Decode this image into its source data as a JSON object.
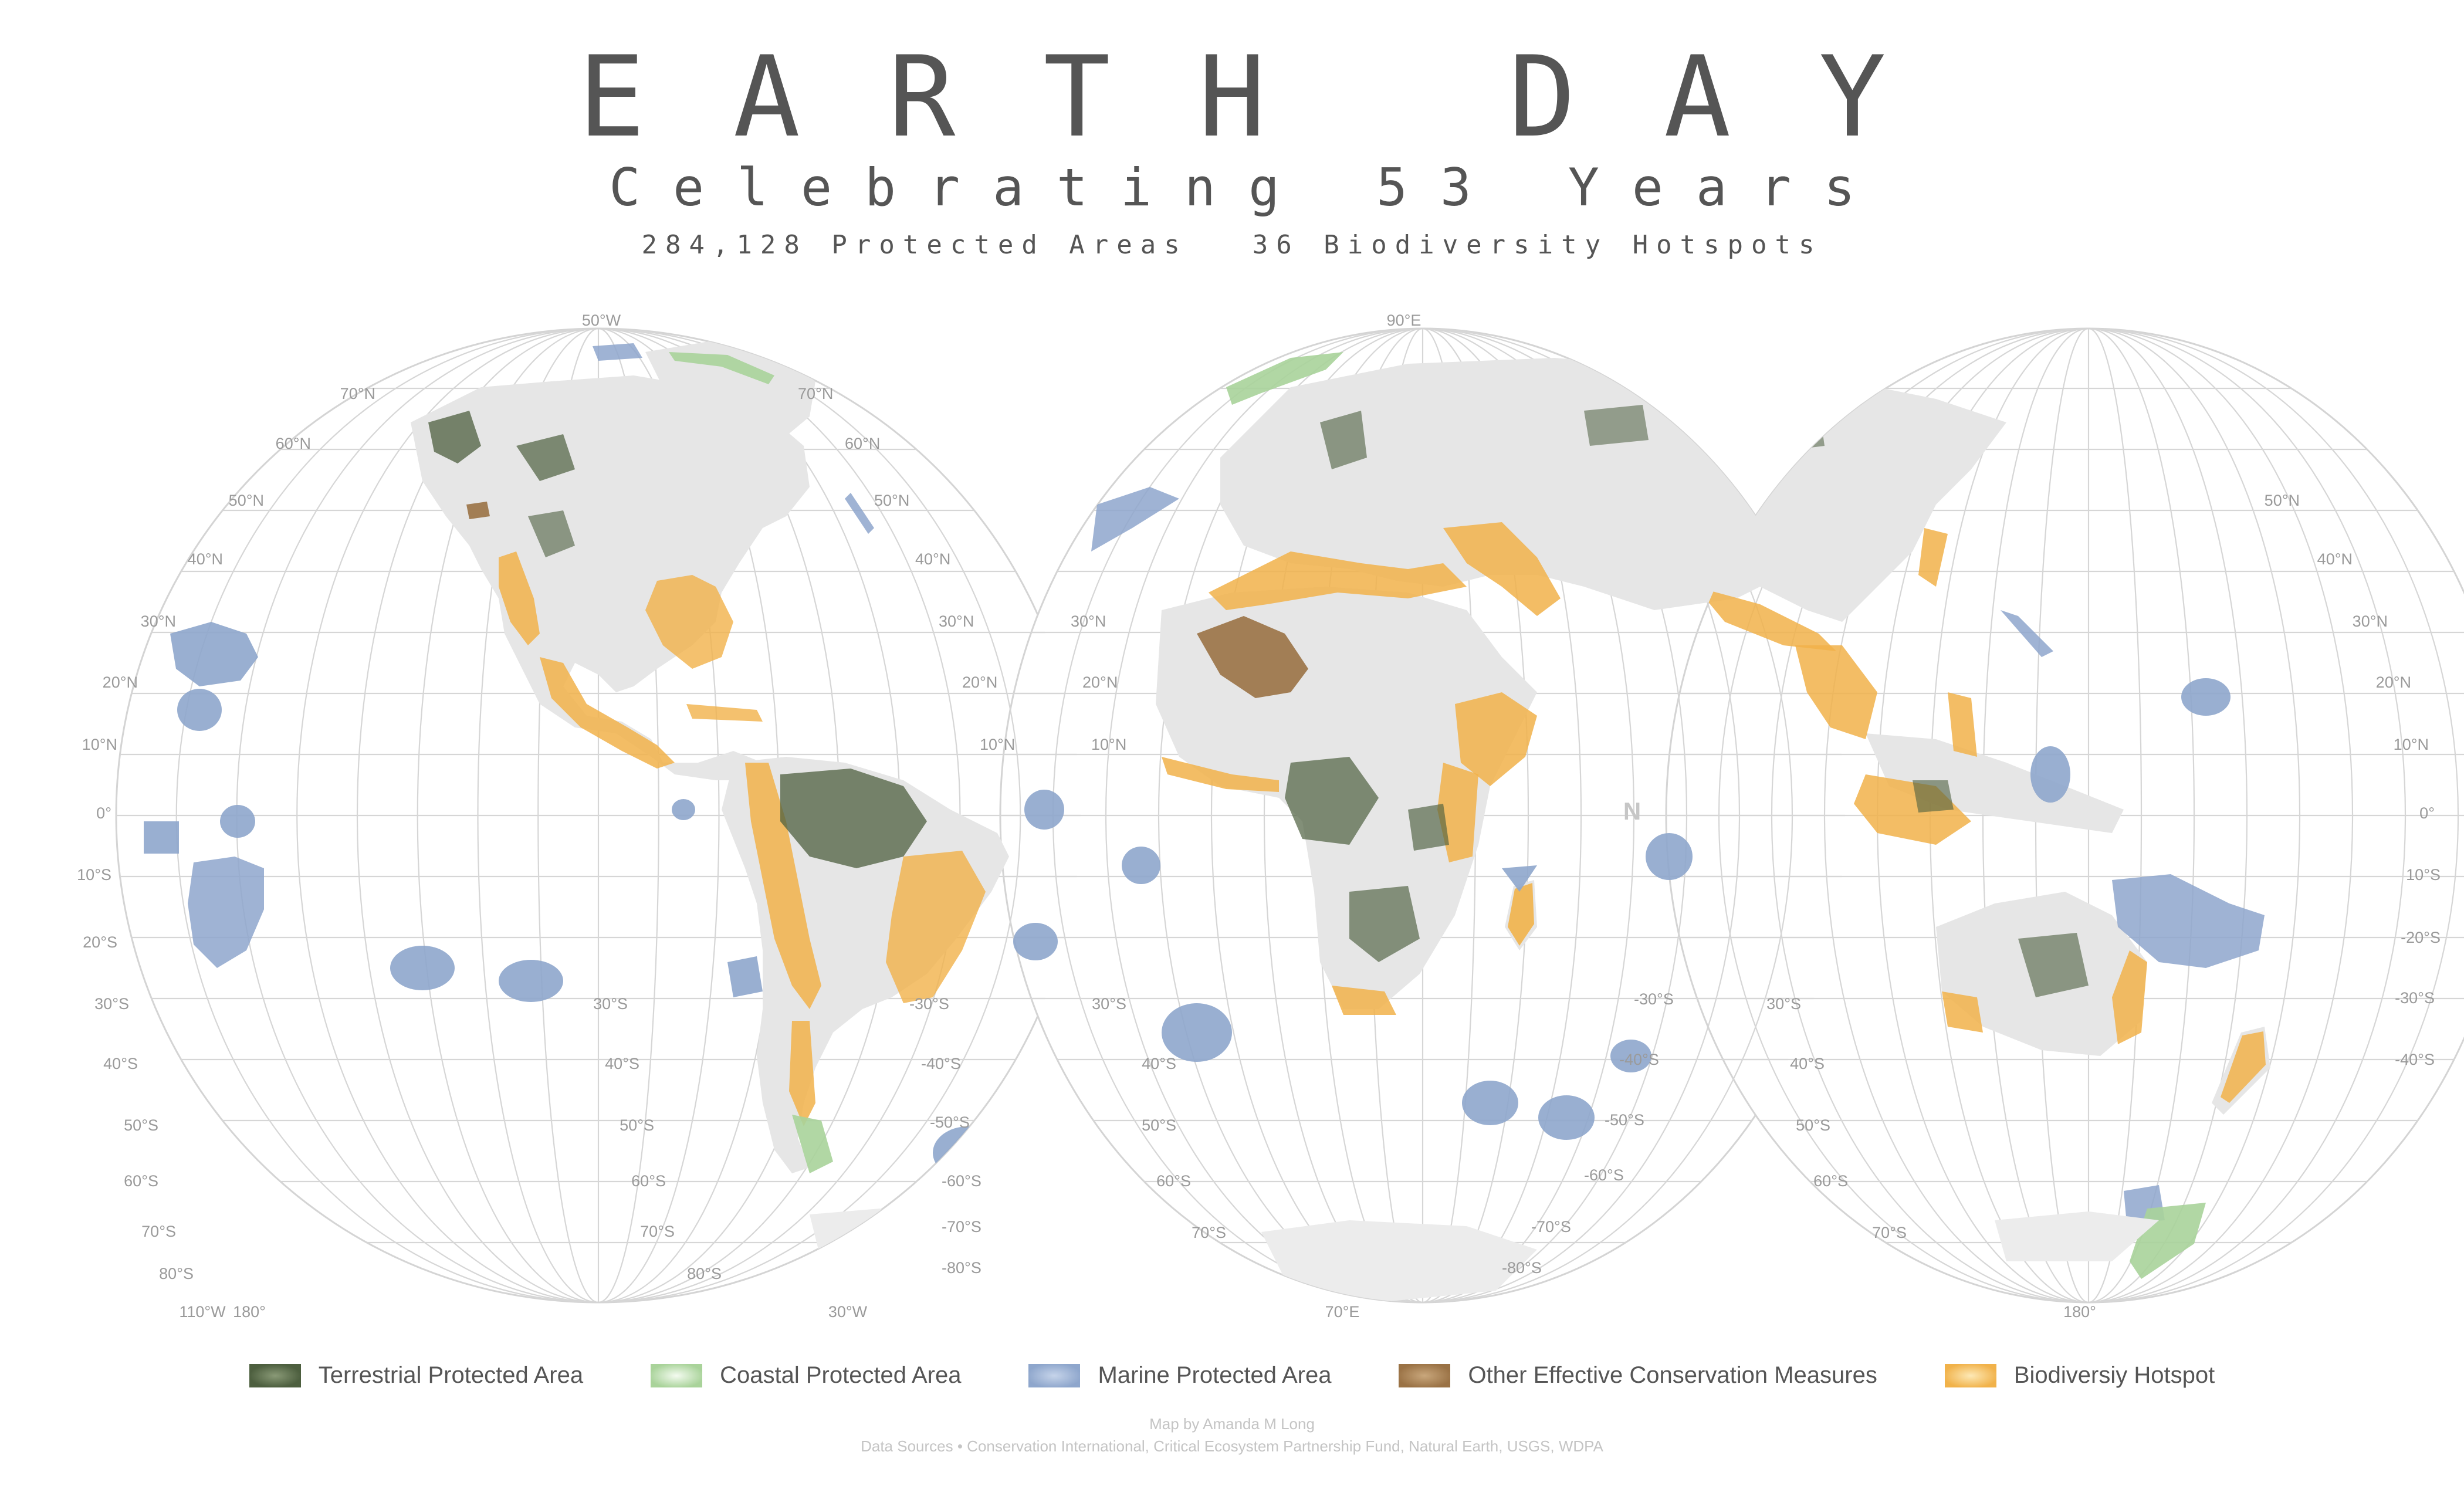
{
  "title": "EARTH DAY",
  "subtitle": "Celebrating 53 Years",
  "stats": {
    "protected_areas": "284,128 Protected Areas",
    "hotspots": "36 Biodiversity Hotspots"
  },
  "colors": {
    "terrestrial": "#4d5f3f",
    "coastal": "#a9d39a",
    "marine": "#8ea6cc",
    "oecm": "#9a7245",
    "hotspot": "#f1b24a",
    "land": "#e6e6e6",
    "graticule": "#d4d4d4"
  },
  "map": {
    "compass_label": "N",
    "lobe_labels": [
      {
        "center": "50°W",
        "bottom": "30°W"
      },
      {
        "center": "90°E",
        "bottom": "70°E"
      },
      {
        "bottom": "180°"
      }
    ],
    "corner_labels": [
      "110°W",
      "180°"
    ],
    "left_latitudes": [
      "70°N",
      "60°N",
      "50°N",
      "40°N",
      "30°N",
      "20°N",
      "10°N",
      "0°",
      "10°S",
      "20°S",
      "30°S",
      "40°S",
      "50°S",
      "60°S",
      "70°S",
      "80°S"
    ],
    "right_latitudes": [
      "70°N",
      "60°N",
      "50°N",
      "40°N",
      "30°N",
      "20°N",
      "10°N",
      "0°",
      "10°S",
      "20°S",
      "30°S",
      "40°S",
      "50°S",
      "60°S",
      "70°S",
      "80°S"
    ],
    "seam1_left": [
      "30°S",
      "40°S",
      "50°S",
      "60°S",
      "70°S",
      "80°S"
    ],
    "seam1_right": [
      "30°N",
      "20°N",
      "10°N"
    ],
    "mid_right_labels": [
      "-30°S",
      "-40°S",
      "-50°S",
      "-60°S",
      "-70°S",
      "-80°S"
    ],
    "seam2_left": [
      "30°S",
      "40°S",
      "50°S",
      "60°S",
      "70°S"
    ],
    "seam2_right": [
      "-30°S",
      "-40°S",
      "-50°S",
      "-60°S",
      "-70°S",
      "-80°S"
    ]
  },
  "legend": [
    {
      "label": "Terrestrial Protected Area",
      "color": "#4d5f3f"
    },
    {
      "label": "Coastal Protected Area",
      "color": "#a9d39a"
    },
    {
      "label": "Marine Protected Area",
      "color": "#8ea6cc"
    },
    {
      "label": "Other Effective Conservation Measures",
      "color": "#9a7245"
    },
    {
      "label": "Biodiversiy Hotspot",
      "color": "#f1b24a"
    }
  ],
  "credits": {
    "author": "Map by Amanda M Long",
    "sources": "Data Sources • Conservation International, Critical Ecosystem Partnership Fund, Natural Earth, USGS, WDPA"
  }
}
